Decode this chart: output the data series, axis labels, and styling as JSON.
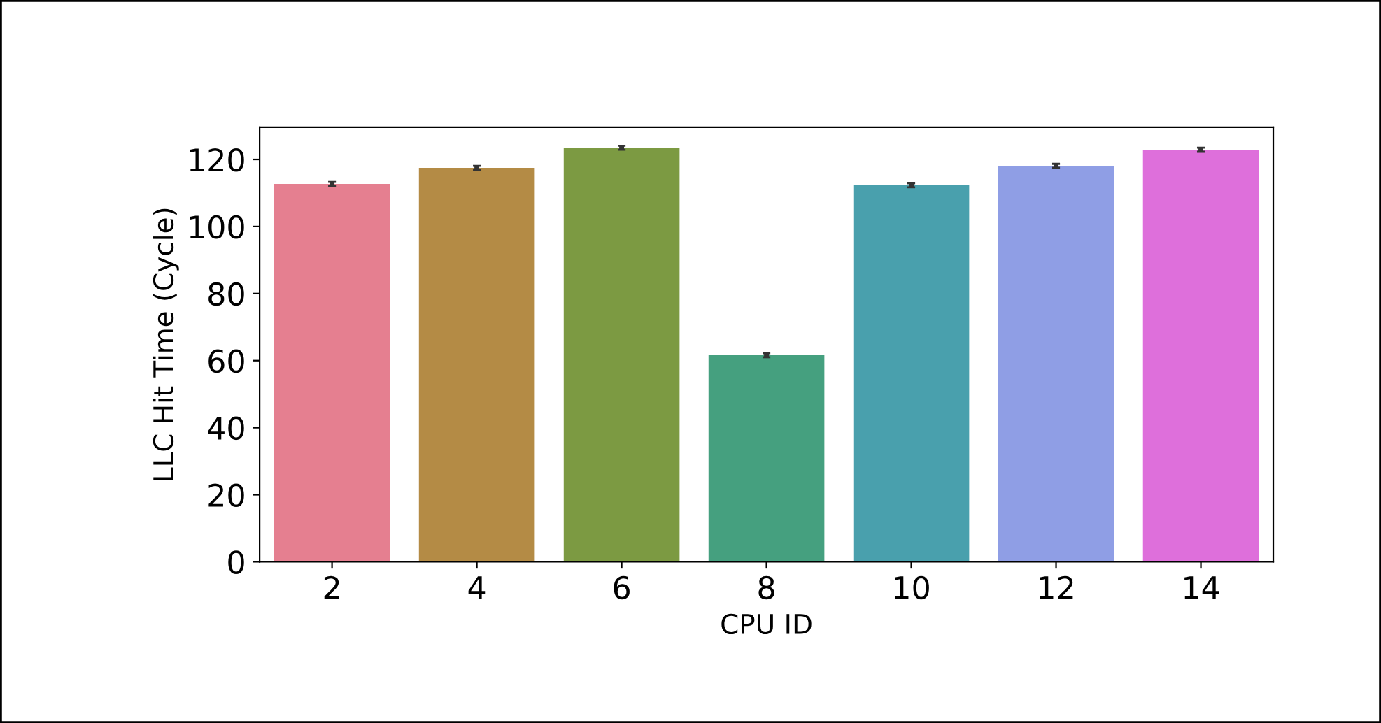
{
  "chart_data": {
    "type": "bar",
    "xlabel": "CPU ID",
    "ylabel": "LLC Hit Time (Cycle)",
    "categories": [
      "2",
      "4",
      "6",
      "8",
      "10",
      "12",
      "14"
    ],
    "values": [
      112.7,
      117.5,
      123.5,
      61.6,
      112.3,
      118.1,
      122.9
    ],
    "errors": [
      0.6,
      0.6,
      0.6,
      0.6,
      0.6,
      0.6,
      0.6
    ],
    "colors": [
      "#e57f90",
      "#b48b45",
      "#7c9a42",
      "#45a07f",
      "#49a0ad",
      "#8f9ee5",
      "#de6fdb"
    ],
    "ylim": [
      0,
      129.6
    ],
    "yticks": [
      0,
      20,
      40,
      60,
      80,
      100,
      120
    ],
    "grid": false,
    "legend": false
  }
}
